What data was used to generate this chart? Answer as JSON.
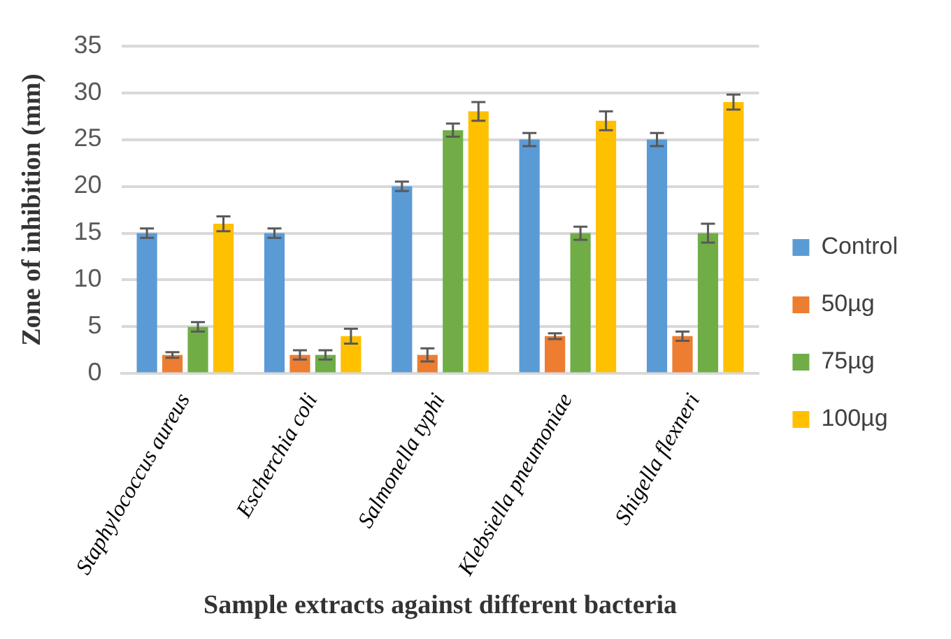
{
  "chart_data": {
    "type": "bar",
    "xlabel": "Sample extracts against different bacteria",
    "ylabel": "Zone of inhibition (mm)",
    "categories": [
      "Staphylococcus aureus",
      "Escherchia coli",
      "Salmonella typhi",
      "Klebsiella pneumoniae",
      "Shigella flexneri"
    ],
    "series": [
      {
        "name": "Control",
        "color": "#5b9bd5",
        "values": [
          15,
          15,
          20,
          25,
          25
        ],
        "errors": [
          0.5,
          0.5,
          0.5,
          0.7,
          0.7
        ]
      },
      {
        "name": "50µg",
        "color": "#ed7d31",
        "values": [
          2,
          2,
          2,
          4,
          4
        ],
        "errors": [
          0.3,
          0.5,
          0.7,
          0.3,
          0.5
        ]
      },
      {
        "name": "75µg",
        "color": "#70ad47",
        "values": [
          5,
          2,
          26,
          15,
          15
        ],
        "errors": [
          0.5,
          0.5,
          0.7,
          0.7,
          1
        ]
      },
      {
        "name": "100µg",
        "color": "#ffc000",
        "values": [
          16,
          4,
          28,
          27,
          29
        ],
        "errors": [
          0.8,
          0.8,
          1,
          1,
          0.8
        ]
      }
    ],
    "ylim": [
      0,
      35
    ],
    "yticks": [
      0,
      5,
      10,
      15,
      20,
      25,
      30,
      35
    ],
    "grid": "y",
    "legend": "right"
  }
}
